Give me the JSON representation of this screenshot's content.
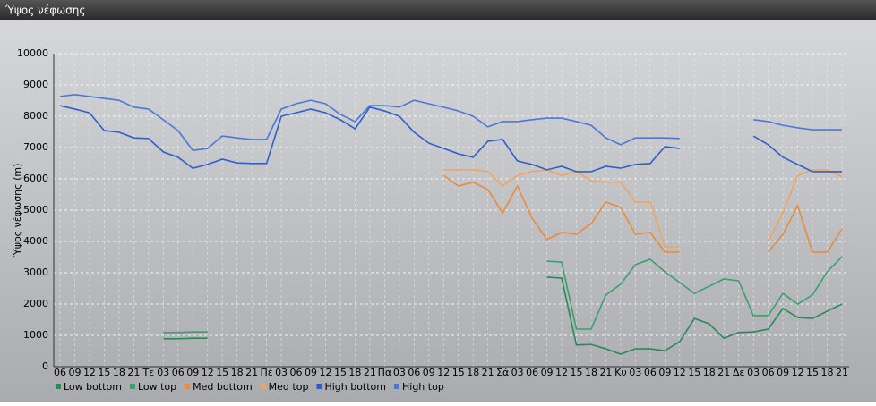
{
  "chart_data": {
    "type": "line",
    "title": "Ύψος νέφωσης",
    "y_label": "Ύψος νέφωσης (m)",
    "categories": [
      "06",
      "09",
      "12",
      "15",
      "18",
      "21",
      "Τε",
      "03",
      "06",
      "09",
      "12",
      "15",
      "18",
      "21",
      "Πέ",
      "03",
      "06",
      "09",
      "12",
      "15",
      "18",
      "21",
      "Πα",
      "03",
      "06",
      "09",
      "12",
      "15",
      "18",
      "21",
      "Σά",
      "03",
      "06",
      "09",
      "12",
      "15",
      "18",
      "21",
      "Κυ",
      "03",
      "06",
      "09",
      "12",
      "15",
      "18",
      "21",
      "Δε",
      "03",
      "06",
      "09",
      "12",
      "15",
      "18",
      "21"
    ],
    "ylim": [
      0,
      10000
    ],
    "yticks": [
      0,
      1000,
      2000,
      3000,
      4000,
      5000,
      6000,
      7000,
      8000,
      9000,
      10000
    ],
    "grid": true,
    "series": [
      {
        "name": "Low bottom",
        "color": "#2a8a55",
        "values": [
          null,
          null,
          null,
          null,
          null,
          null,
          null,
          890,
          890,
          910,
          910,
          null,
          null,
          null,
          null,
          null,
          null,
          null,
          null,
          null,
          null,
          null,
          null,
          null,
          null,
          null,
          null,
          null,
          null,
          null,
          null,
          null,
          null,
          2860,
          2830,
          690,
          710,
          570,
          400,
          570,
          570,
          510,
          800,
          1540,
          1370,
          910,
          1090,
          1110,
          1200,
          1860,
          1570,
          1540,
          1770,
          2000
        ]
      },
      {
        "name": "Low top",
        "color": "#3aa06c",
        "values": [
          null,
          null,
          null,
          null,
          null,
          null,
          null,
          1090,
          1090,
          1110,
          1110,
          null,
          null,
          null,
          null,
          null,
          null,
          null,
          null,
          null,
          null,
          null,
          null,
          null,
          null,
          null,
          null,
          null,
          null,
          null,
          null,
          null,
          null,
          3370,
          3340,
          1200,
          1200,
          2290,
          2630,
          3260,
          3430,
          3030,
          2690,
          2340,
          2570,
          2800,
          2740,
          1630,
          1630,
          2340,
          2000,
          2290,
          3030,
          3510
        ]
      },
      {
        "name": "Med bottom",
        "color": "#e88b3c",
        "values": [
          null,
          null,
          null,
          null,
          null,
          null,
          null,
          null,
          null,
          null,
          null,
          null,
          null,
          null,
          null,
          null,
          null,
          null,
          null,
          null,
          null,
          null,
          null,
          null,
          null,
          null,
          6110,
          5770,
          5890,
          5660,
          4910,
          5770,
          4740,
          4060,
          4290,
          4230,
          4570,
          5260,
          5090,
          4230,
          4290,
          3660,
          3660,
          null,
          null,
          null,
          null,
          null,
          3660,
          4230,
          5140,
          3660,
          3660,
          4400
        ]
      },
      {
        "name": "Med top",
        "color": "#f0a45e",
        "values": [
          null,
          null,
          null,
          null,
          null,
          null,
          null,
          null,
          null,
          null,
          null,
          null,
          null,
          null,
          null,
          null,
          null,
          null,
          null,
          null,
          null,
          null,
          null,
          null,
          null,
          null,
          6290,
          6290,
          6290,
          6230,
          5770,
          6110,
          6230,
          6290,
          6110,
          6230,
          5940,
          5890,
          5890,
          5260,
          5260,
          3830,
          3830,
          null,
          null,
          null,
          null,
          null,
          4000,
          4910,
          6110,
          6290,
          6290,
          6060
        ]
      },
      {
        "name": "High bottom",
        "color": "#2d5fcc",
        "values": [
          8340,
          8230,
          8110,
          7540,
          7490,
          7310,
          7290,
          6860,
          6690,
          6340,
          6460,
          6630,
          6510,
          6490,
          6490,
          8000,
          8110,
          8230,
          8110,
          7890,
          7600,
          8290,
          8170,
          8000,
          7490,
          7140,
          6970,
          6800,
          6690,
          7200,
          7260,
          6570,
          6460,
          6290,
          6400,
          6230,
          6230,
          6400,
          6340,
          6460,
          6490,
          7030,
          6970,
          null,
          null,
          null,
          null,
          7370,
          7090,
          6690,
          6460,
          6230,
          6230,
          6230
        ]
      },
      {
        "name": "High top",
        "color": "#4b78d8",
        "values": [
          8630,
          8690,
          8630,
          8570,
          8510,
          8290,
          8230,
          7890,
          7540,
          6910,
          6970,
          7370,
          7310,
          7260,
          7260,
          8230,
          8400,
          8510,
          8400,
          8060,
          7830,
          8340,
          8340,
          8290,
          8510,
          8400,
          8290,
          8170,
          8000,
          7660,
          7830,
          7830,
          7890,
          7940,
          7940,
          7830,
          7710,
          7310,
          7090,
          7310,
          7310,
          7310,
          7290,
          null,
          null,
          null,
          null,
          7890,
          7830,
          7710,
          7630,
          7570,
          7570,
          7570
        ]
      }
    ]
  }
}
